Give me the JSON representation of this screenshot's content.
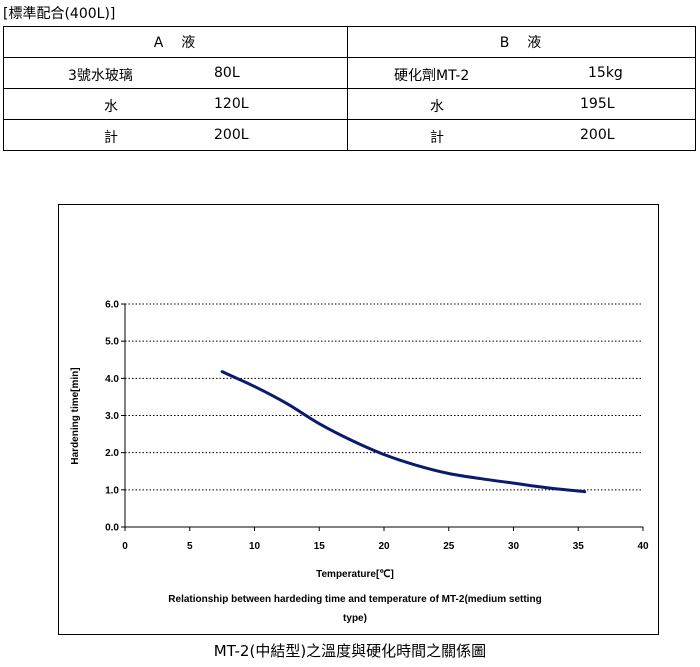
{
  "heading": "[標準配合(400L)]",
  "table": {
    "col_a": "A　液",
    "col_b": "B　液",
    "rows": [
      {
        "a_name": "3號水玻璃",
        "a_value": "80L",
        "b_name": "硬化劑MT-2",
        "b_value": "15kg"
      },
      {
        "a_name": "水",
        "a_value": "120L",
        "b_name": "水",
        "b_value": "195L"
      },
      {
        "a_name": "計",
        "a_value": "200L",
        "b_name": "計",
        "b_value": "200L"
      }
    ]
  },
  "chart_data": {
    "type": "line",
    "title": "Relationship between hardeding time and temperature of MT-2(medium setting type)",
    "title_lines": [
      "Relationship between hardeding time and temperature of MT-2(medium setting",
      "type)"
    ],
    "xlabel": "Temperature[℃]",
    "ylabel": "Hardening time[min]",
    "xlim": [
      0,
      40
    ],
    "ylim": [
      0,
      6
    ],
    "x_ticks": [
      "0",
      "5",
      "10",
      "15",
      "20",
      "25",
      "30",
      "35",
      "40"
    ],
    "y_ticks": [
      "0.0",
      "1.0",
      "2.0",
      "3.0",
      "4.0",
      "5.0",
      "6.0"
    ],
    "grid": true,
    "series": [
      {
        "color": "#0a1a6e",
        "x": [
          7.5,
          10,
          12.5,
          15,
          17.5,
          20,
          22.5,
          25,
          27.5,
          30,
          32.5,
          35.5
        ],
        "y": [
          4.18,
          3.78,
          3.32,
          2.78,
          2.33,
          1.95,
          1.66,
          1.44,
          1.3,
          1.18,
          1.06,
          0.95
        ]
      }
    ]
  },
  "caption": "MT-2(中結型)之溫度與硬化時間之關係圖"
}
